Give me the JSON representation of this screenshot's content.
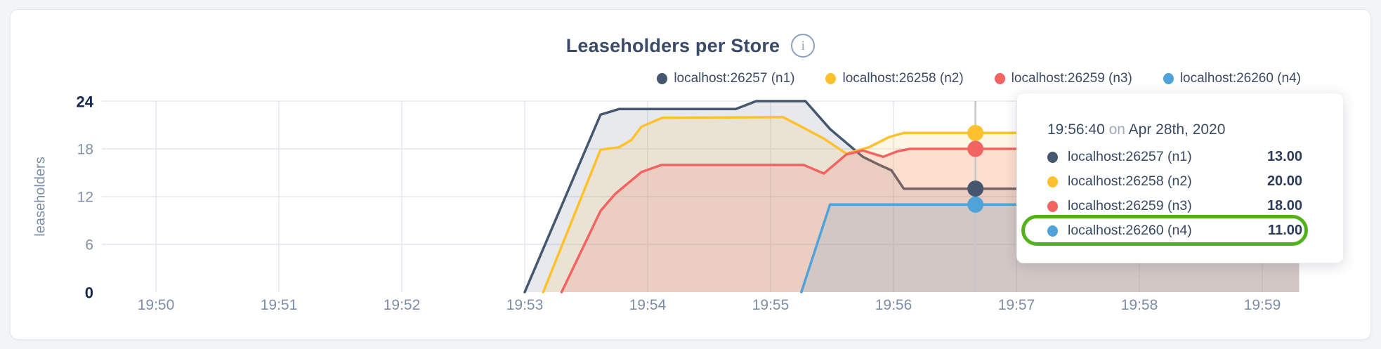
{
  "page": {
    "background": "#f3f4f6",
    "card_background": "#ffffff",
    "card_border": "#e7e8ec"
  },
  "header": {
    "title": "Leaseholders per Store",
    "info_icon_glyph": "i"
  },
  "legend": {
    "items": [
      {
        "label": "localhost:26257 (n1)",
        "color": "#45566f"
      },
      {
        "label": "localhost:26258 (n2)",
        "color": "#fdc12d"
      },
      {
        "label": "localhost:26259 (n3)",
        "color": "#f16462"
      },
      {
        "label": "localhost:26260 (n4)",
        "color": "#4fa3d8"
      }
    ]
  },
  "chart_data": {
    "type": "area",
    "title": "Leaseholders per Store",
    "ylabel": "leaseholders",
    "ylim": [
      0,
      24
    ],
    "grid": true,
    "legend_position": "top-right",
    "x_unit": "seconds after 19:50:00 on Apr 28th, 2020",
    "y_ticks": [
      {
        "value": 0,
        "label": "0",
        "emphasis": true
      },
      {
        "value": 6,
        "label": "6",
        "emphasis": false
      },
      {
        "value": 12,
        "label": "12",
        "emphasis": false
      },
      {
        "value": 18,
        "label": "18",
        "emphasis": false
      },
      {
        "value": 24,
        "label": "24",
        "emphasis": true
      }
    ],
    "x_ticks": [
      {
        "minutes": 0,
        "label": "19:50"
      },
      {
        "minutes": 1,
        "label": "19:51"
      },
      {
        "minutes": 2,
        "label": "19:52"
      },
      {
        "minutes": 3,
        "label": "19:53"
      },
      {
        "minutes": 4,
        "label": "19:54"
      },
      {
        "minutes": 5,
        "label": "19:55"
      },
      {
        "minutes": 6,
        "label": "19:56"
      },
      {
        "minutes": 7,
        "label": "19:57"
      },
      {
        "minutes": 8,
        "label": "19:58"
      },
      {
        "minutes": 9,
        "label": "19:59"
      }
    ],
    "series": [
      {
        "name": "localhost:26257 (n1)",
        "color": "#45566f",
        "fill_opacity": 0.13,
        "points_time_value": [
          [
            180,
            0
          ],
          [
            217,
            22.3
          ],
          [
            226,
            23
          ],
          [
            283,
            23
          ],
          [
            293,
            24
          ],
          [
            317,
            24
          ],
          [
            329,
            20.5
          ],
          [
            345,
            17
          ],
          [
            353,
            16
          ],
          [
            359,
            15.3
          ],
          [
            365,
            13
          ],
          [
            558,
            13
          ]
        ]
      },
      {
        "name": "localhost:26258 (n2)",
        "color": "#fdc12d",
        "fill_opacity": 0.13,
        "points_time_value": [
          [
            189,
            0
          ],
          [
            217,
            17.9
          ],
          [
            226,
            18.2
          ],
          [
            232,
            19.1
          ],
          [
            237,
            20.8
          ],
          [
            247,
            21.9
          ],
          [
            306,
            22
          ],
          [
            315,
            20.8
          ],
          [
            326,
            19.3
          ],
          [
            337,
            17.4
          ],
          [
            348,
            18.2
          ],
          [
            358,
            19.5
          ],
          [
            365,
            20
          ],
          [
            558,
            20
          ]
        ]
      },
      {
        "name": "localhost:26259 (n3)",
        "color": "#f16462",
        "fill_opacity": 0.16,
        "points_time_value": [
          [
            198,
            0
          ],
          [
            217,
            10.2
          ],
          [
            224,
            12.3
          ],
          [
            237,
            15.1
          ],
          [
            247,
            16
          ],
          [
            316,
            16
          ],
          [
            326,
            14.9
          ],
          [
            337,
            17.3
          ],
          [
            345,
            17.8
          ],
          [
            355,
            17
          ],
          [
            362,
            17.7
          ],
          [
            368,
            18
          ],
          [
            558,
            18
          ]
        ]
      },
      {
        "name": "localhost:26260 (n4)",
        "color": "#4fa3d8",
        "fill_opacity": 0.16,
        "points_time_value": [
          [
            315,
            0
          ],
          [
            329,
            11
          ],
          [
            558,
            11
          ]
        ]
      }
    ],
    "hover": {
      "time_seconds": 400,
      "time_label": "19:56:40",
      "values": [
        13,
        20,
        18,
        11
      ],
      "crosshair_color": "#c7c7c7"
    }
  },
  "tooltip": {
    "time": "19:56:40",
    "connector": "on",
    "date": "Apr 28th, 2020",
    "rows": [
      {
        "label": "localhost:26257 (n1)",
        "value": "13.00",
        "color": "#45566f",
        "highlighted": false
      },
      {
        "label": "localhost:26258 (n2)",
        "value": "20.00",
        "color": "#fdc12d",
        "highlighted": false
      },
      {
        "label": "localhost:26259 (n3)",
        "value": "18.00",
        "color": "#f16462",
        "highlighted": false
      },
      {
        "label": "localhost:26260 (n4)",
        "value": "11.00",
        "color": "#4fa3d8",
        "highlighted": true
      }
    ],
    "highlight_color": "#53b11c"
  }
}
